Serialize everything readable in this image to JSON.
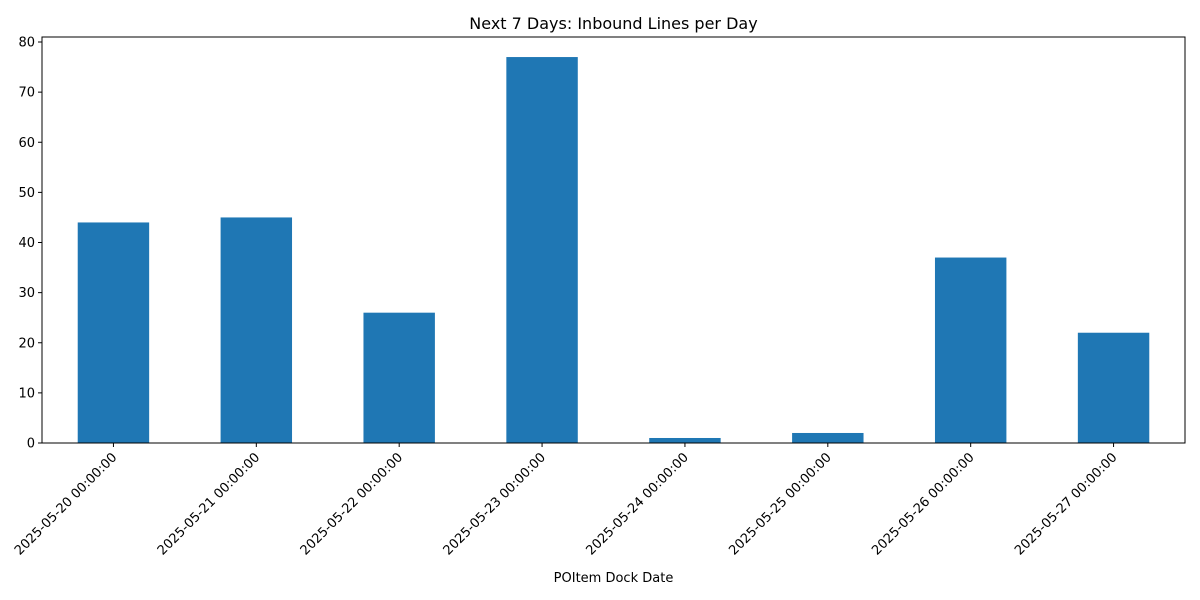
{
  "chart_data": {
    "type": "bar",
    "title": "Next 7 Days: Inbound Lines per Day",
    "xlabel": "POItem Dock Date",
    "ylabel": "",
    "categories": [
      "2025-05-20 00:00:00",
      "2025-05-21 00:00:00",
      "2025-05-22 00:00:00",
      "2025-05-23 00:00:00",
      "2025-05-24 00:00:00",
      "2025-05-25 00:00:00",
      "2025-05-26 00:00:00",
      "2025-05-27 00:00:00"
    ],
    "values": [
      44,
      45,
      26,
      77,
      1,
      2,
      37,
      22
    ],
    "ylim": [
      0,
      81
    ],
    "yticks": [
      0,
      10,
      20,
      30,
      40,
      50,
      60,
      70,
      80
    ],
    "grid": false,
    "legend": "none",
    "bar_color": "#1f77b4"
  }
}
